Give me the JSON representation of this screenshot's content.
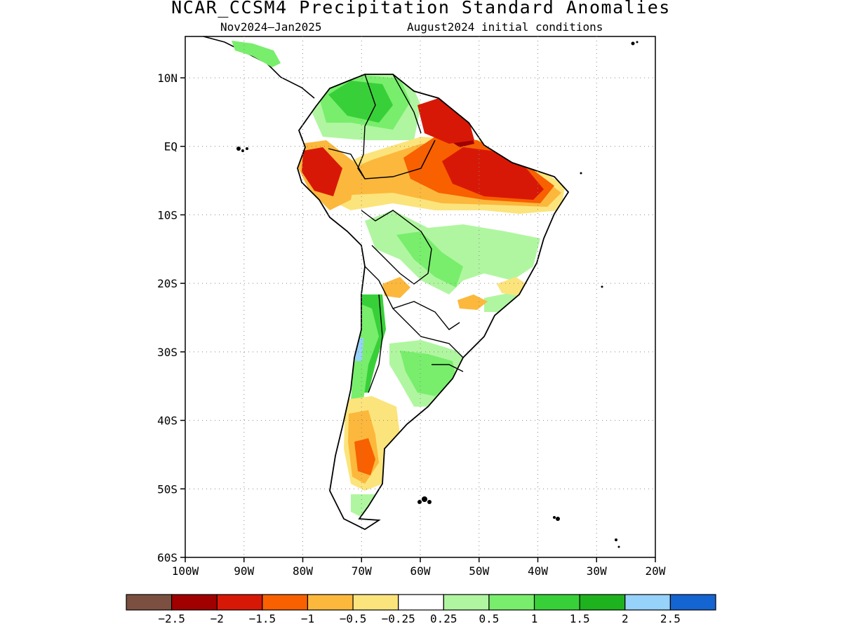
{
  "title": "NCAR_CCSM4 Precipitation Standard Anomalies",
  "subtitle_left": "Nov2024–Jan2025",
  "subtitle_right": "August2024 initial conditions",
  "map": {
    "region": "South America",
    "lon_range": [
      -100,
      -20
    ],
    "lat_range": [
      -60,
      16
    ],
    "lat_labels": [
      {
        "lat": 10,
        "text": "10N"
      },
      {
        "lat": 0,
        "text": "EQ"
      },
      {
        "lat": -10,
        "text": "10S"
      },
      {
        "lat": -20,
        "text": "20S"
      },
      {
        "lat": -30,
        "text": "30S"
      },
      {
        "lat": -40,
        "text": "40S"
      },
      {
        "lat": -50,
        "text": "50S"
      },
      {
        "lat": -60,
        "text": "60S"
      }
    ],
    "lon_labels": [
      {
        "lon": -100,
        "text": "100W"
      },
      {
        "lon": -90,
        "text": "90W"
      },
      {
        "lon": -80,
        "text": "80W"
      },
      {
        "lon": -70,
        "text": "70W"
      },
      {
        "lon": -60,
        "text": "60W"
      },
      {
        "lon": -50,
        "text": "50W"
      },
      {
        "lon": -40,
        "text": "40W"
      },
      {
        "lon": -30,
        "text": "30W"
      },
      {
        "lon": -20,
        "text": "20W"
      }
    ],
    "grid": "dotted",
    "anomaly_regions": [
      {
        "name": "amazon-dry-core",
        "level": -2.5
      },
      {
        "name": "northeast-brazil-dry",
        "level": -2
      },
      {
        "name": "peru-dry",
        "level": -1.5
      },
      {
        "name": "colombia-wet",
        "level": 1.5
      },
      {
        "name": "central-brazil-wet",
        "level": 0.5
      },
      {
        "name": "patagonia-dry",
        "level": -1.5
      },
      {
        "name": "central-chile-wet",
        "level": 1.5
      },
      {
        "name": "southern-brazil-wet",
        "level": 1
      }
    ]
  },
  "colorbar": {
    "colors": [
      "#7b5040",
      "#a00000",
      "#d81806",
      "#f86000",
      "#fcb83c",
      "#fce47c",
      "#ffffff",
      "#b0f6a0",
      "#78ee6c",
      "#38d038",
      "#1eb21e",
      "#96d2fa",
      "#1464d2"
    ],
    "labels": [
      "−2.5",
      "−2",
      "−1.5",
      "−1",
      "−0.5",
      "−0.25",
      "0.25",
      "0.5",
      "1",
      "1.5",
      "2",
      "2.5"
    ]
  }
}
